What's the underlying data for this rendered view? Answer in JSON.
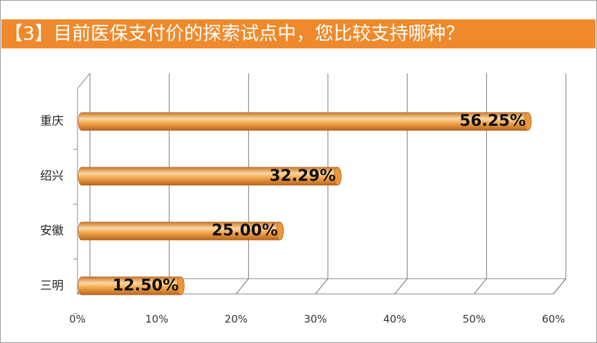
{
  "chart_data": {
    "type": "bar",
    "orientation": "horizontal",
    "title": "【3】目前医保支付价的探索试点中，您比较支持哪种？",
    "categories": [
      "重庆",
      "绍兴",
      "安徽",
      "三明"
    ],
    "values": [
      56.25,
      32.29,
      25.0,
      12.5
    ],
    "value_labels": [
      "56.25%",
      "32.29%",
      "25.00%",
      "12.50%"
    ],
    "color": "#f0a040",
    "xlim": [
      0,
      60
    ],
    "xticks": [
      {
        "value": 0,
        "label": "0%"
      },
      {
        "value": 10,
        "label": "10%"
      },
      {
        "value": 20,
        "label": "20%"
      },
      {
        "value": 30,
        "label": "30%"
      },
      {
        "value": 40,
        "label": "40%"
      },
      {
        "value": 50,
        "label": "50%"
      },
      {
        "value": 60,
        "label": "60%"
      }
    ],
    "grid": true
  }
}
